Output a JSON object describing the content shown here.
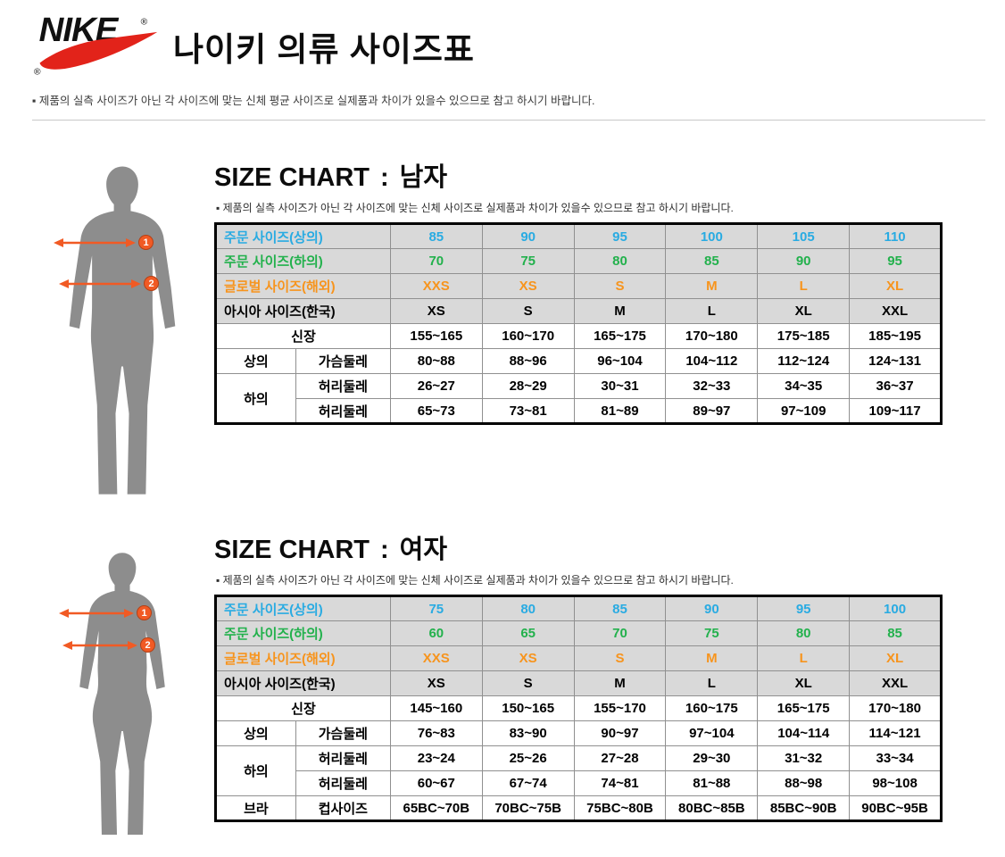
{
  "header": {
    "logo_text": "NIKE",
    "reg": "®",
    "title": "나이키 의류 사이즈표",
    "disclaimer": "▪ 제품의 실측 사이즈가 아닌 각 사이즈에 맞는 신체 평균 사이즈로 실제품과 차이가 있을수 있으므로 참고 하시기 바랍니다."
  },
  "colors": {
    "swoosh_red": "#e2231a",
    "blue": "#29abe2",
    "green": "#22b14c",
    "orange": "#f7941d",
    "arrow_orange": "#f15a24",
    "shade_gray": "#d9d9d9",
    "silhouette_gray": "#8d8d8d"
  },
  "sections": [
    {
      "id": "men",
      "heading": {
        "en": "SIZE CHART",
        "colon": ":",
        "gender": "남자"
      },
      "note": "▪ 제품의 실측 사이즈가 아닌 각 사이즈에 맞는 신체 사이즈로 실제품과 차이가 있을수 있으므로 참고 하시기 바랍니다.",
      "markers": [
        "1",
        "2"
      ],
      "table": {
        "col_widths": [
          "11%",
          "13%",
          "12.6%",
          "12.6%",
          "12.6%",
          "12.6%",
          "12.6%",
          "12.6%"
        ],
        "rows": [
          {
            "shade": true,
            "cells": [
              {
                "text": "주문 사이즈(상의)",
                "colspan": 2,
                "cls": "left blue",
                "label": true
              },
              {
                "text": "85",
                "cls": "blue"
              },
              {
                "text": "90",
                "cls": "blue"
              },
              {
                "text": "95",
                "cls": "blue"
              },
              {
                "text": "100",
                "cls": "blue"
              },
              {
                "text": "105",
                "cls": "blue"
              },
              {
                "text": "110",
                "cls": "blue"
              }
            ]
          },
          {
            "shade": true,
            "cells": [
              {
                "text": "주문 사이즈(하의)",
                "colspan": 2,
                "cls": "left green",
                "label": true
              },
              {
                "text": "70",
                "cls": "green"
              },
              {
                "text": "75",
                "cls": "green"
              },
              {
                "text": "80",
                "cls": "green"
              },
              {
                "text": "85",
                "cls": "green"
              },
              {
                "text": "90",
                "cls": "green"
              },
              {
                "text": "95",
                "cls": "green"
              }
            ]
          },
          {
            "shade": true,
            "cells": [
              {
                "text": "글로벌 사이즈(해외)",
                "colspan": 2,
                "cls": "left orange",
                "label": true
              },
              {
                "text": "XXS",
                "cls": "orange"
              },
              {
                "text": "XS",
                "cls": "orange"
              },
              {
                "text": "S",
                "cls": "orange"
              },
              {
                "text": "M",
                "cls": "orange"
              },
              {
                "text": "L",
                "cls": "orange"
              },
              {
                "text": "XL",
                "cls": "orange"
              }
            ]
          },
          {
            "shade": true,
            "cells": [
              {
                "text": "아시아 사이즈(한국)",
                "colspan": 2,
                "cls": "left",
                "label": true
              },
              {
                "text": "XS"
              },
              {
                "text": "S"
              },
              {
                "text": "M"
              },
              {
                "text": "L"
              },
              {
                "text": "XL"
              },
              {
                "text": "XXL"
              }
            ]
          },
          {
            "cells": [
              {
                "text": "신장",
                "colspan": 2,
                "label": true
              },
              {
                "text": "155~165"
              },
              {
                "text": "160~170"
              },
              {
                "text": "165~175"
              },
              {
                "text": "170~180"
              },
              {
                "text": "175~185"
              },
              {
                "text": "185~195"
              }
            ]
          },
          {
            "cells": [
              {
                "text": "상의",
                "label": true
              },
              {
                "text": "가슴둘레",
                "label": true
              },
              {
                "text": "80~88"
              },
              {
                "text": "88~96"
              },
              {
                "text": "96~104"
              },
              {
                "text": "104~112"
              },
              {
                "text": "112~124"
              },
              {
                "text": "124~131"
              }
            ]
          },
          {
            "cells": [
              {
                "text": "하의",
                "rowspan": 2,
                "label": true
              },
              {
                "text": "허리둘레",
                "label": true
              },
              {
                "text": "26~27"
              },
              {
                "text": "28~29"
              },
              {
                "text": "30~31"
              },
              {
                "text": "32~33"
              },
              {
                "text": "34~35"
              },
              {
                "text": "36~37"
              }
            ]
          },
          {
            "cells": [
              {
                "text": "허리둘레",
                "label": true
              },
              {
                "text": "65~73"
              },
              {
                "text": "73~81"
              },
              {
                "text": "81~89"
              },
              {
                "text": "89~97"
              },
              {
                "text": "97~109"
              },
              {
                "text": "109~117"
              }
            ]
          }
        ]
      }
    },
    {
      "id": "women",
      "heading": {
        "en": "SIZE CHART",
        "colon": ":",
        "gender": "여자"
      },
      "note": "▪ 제품의 실측 사이즈가 아닌 각 사이즈에 맞는 신체 사이즈로 실제품과 차이가 있을수 있으므로 참고 하시기 바랍니다.",
      "markers": [
        "1",
        "2"
      ],
      "table": {
        "col_widths": [
          "11%",
          "13%",
          "12.6%",
          "12.6%",
          "12.6%",
          "12.6%",
          "12.6%",
          "12.6%"
        ],
        "rows": [
          {
            "shade": true,
            "cells": [
              {
                "text": "주문 사이즈(상의)",
                "colspan": 2,
                "cls": "left blue",
                "label": true
              },
              {
                "text": "75",
                "cls": "blue"
              },
              {
                "text": "80",
                "cls": "blue"
              },
              {
                "text": "85",
                "cls": "blue"
              },
              {
                "text": "90",
                "cls": "blue"
              },
              {
                "text": "95",
                "cls": "blue"
              },
              {
                "text": "100",
                "cls": "blue"
              }
            ]
          },
          {
            "shade": true,
            "cells": [
              {
                "text": "주문 사이즈(하의)",
                "colspan": 2,
                "cls": "left green",
                "label": true
              },
              {
                "text": "60",
                "cls": "green"
              },
              {
                "text": "65",
                "cls": "green"
              },
              {
                "text": "70",
                "cls": "green"
              },
              {
                "text": "75",
                "cls": "green"
              },
              {
                "text": "80",
                "cls": "green"
              },
              {
                "text": "85",
                "cls": "green"
              }
            ]
          },
          {
            "shade": true,
            "cells": [
              {
                "text": "글로벌 사이즈(해외)",
                "colspan": 2,
                "cls": "left orange",
                "label": true
              },
              {
                "text": "XXS",
                "cls": "orange"
              },
              {
                "text": "XS",
                "cls": "orange"
              },
              {
                "text": "S",
                "cls": "orange"
              },
              {
                "text": "M",
                "cls": "orange"
              },
              {
                "text": "L",
                "cls": "orange"
              },
              {
                "text": "XL",
                "cls": "orange"
              }
            ]
          },
          {
            "shade": true,
            "cells": [
              {
                "text": "아시아 사이즈(한국)",
                "colspan": 2,
                "cls": "left",
                "label": true
              },
              {
                "text": "XS"
              },
              {
                "text": "S"
              },
              {
                "text": "M"
              },
              {
                "text": "L"
              },
              {
                "text": "XL"
              },
              {
                "text": "XXL"
              }
            ]
          },
          {
            "cells": [
              {
                "text": "신장",
                "colspan": 2,
                "label": true
              },
              {
                "text": "145~160"
              },
              {
                "text": "150~165"
              },
              {
                "text": "155~170"
              },
              {
                "text": "160~175"
              },
              {
                "text": "165~175"
              },
              {
                "text": "170~180"
              }
            ]
          },
          {
            "cells": [
              {
                "text": "상의",
                "label": true
              },
              {
                "text": "가슴둘레",
                "label": true
              },
              {
                "text": "76~83"
              },
              {
                "text": "83~90"
              },
              {
                "text": "90~97"
              },
              {
                "text": "97~104"
              },
              {
                "text": "104~114"
              },
              {
                "text": "114~121"
              }
            ]
          },
          {
            "cells": [
              {
                "text": "하의",
                "rowspan": 2,
                "label": true
              },
              {
                "text": "허리둘레",
                "label": true
              },
              {
                "text": "23~24"
              },
              {
                "text": "25~26"
              },
              {
                "text": "27~28"
              },
              {
                "text": "29~30"
              },
              {
                "text": "31~32"
              },
              {
                "text": "33~34"
              }
            ]
          },
          {
            "cells": [
              {
                "text": "허리둘레",
                "label": true
              },
              {
                "text": "60~67"
              },
              {
                "text": "67~74"
              },
              {
                "text": "74~81"
              },
              {
                "text": "81~88"
              },
              {
                "text": "88~98"
              },
              {
                "text": "98~108"
              }
            ]
          },
          {
            "cells": [
              {
                "text": "브라",
                "label": true
              },
              {
                "text": "컵사이즈",
                "label": true
              },
              {
                "text": "65BC~70B"
              },
              {
                "text": "70BC~75B"
              },
              {
                "text": "75BC~80B"
              },
              {
                "text": "80BC~85B"
              },
              {
                "text": "85BC~90B"
              },
              {
                "text": "90BC~95B"
              }
            ]
          }
        ]
      }
    }
  ]
}
